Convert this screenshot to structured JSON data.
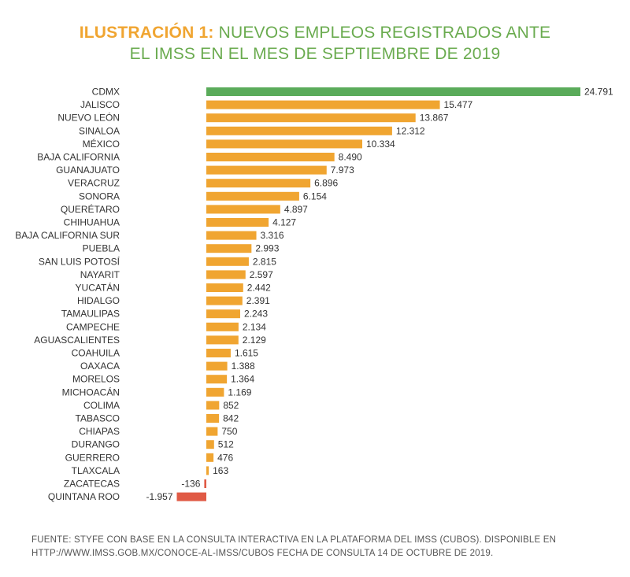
{
  "title": {
    "lead": "ILUSTRACIÓN 1:",
    "line1_rest": "NUEVOS EMPLEOS REGISTRADOS ANTE",
    "line2": "EL IMSS EN EL MES DE SEPTIEMBRE DE 2019"
  },
  "source": {
    "line1": "FUENTE: STYFE CON BASE EN LA CONSULTA INTERACTIVA EN LA PLATAFORMA DEL IMSS (CUBOS).  DISPONIBLE EN",
    "line2": "HTTP://WWW.IMSS.GOB.MX/CONOCE-AL-IMSS/CUBOS  FECHA DE CONSULTA 14 DE OCTUBRE DE 2019."
  },
  "colors": {
    "highlight": "#5aab5a",
    "positive": "#f0a531",
    "negative": "#e05a45",
    "title_green": "#6aab4f",
    "title_orange": "#f0a531"
  },
  "chart_data": {
    "type": "bar",
    "orientation": "horizontal",
    "categories": [
      "CDMX",
      "JALISCO",
      "NUEVO LEÓN",
      "SINALOA",
      "MÉXICO",
      "BAJA CALIFORNIA",
      "GUANAJUATO",
      "VERACRUZ",
      "SONORA",
      "QUERÉTARO",
      "CHIHUAHUA",
      "BAJA CALIFORNIA SUR",
      "PUEBLA",
      "SAN LUIS POTOSÍ",
      "NAYARIT",
      "YUCATÁN",
      "HIDALGO",
      "TAMAULIPAS",
      "CAMPECHE",
      "AGUASCALIENTES",
      "COAHUILA",
      "OAXACA",
      "MORELOS",
      "MICHOACÁN",
      "COLIMA",
      "TABASCO",
      "CHIAPAS",
      "DURANGO",
      "GUERRERO",
      "TLAXCALA",
      "ZACATECAS",
      "QUINTANA ROO"
    ],
    "values": [
      24791,
      15477,
      13867,
      12312,
      10334,
      8490,
      7973,
      6896,
      6154,
      4897,
      4127,
      3316,
      2993,
      2815,
      2597,
      2442,
      2391,
      2243,
      2134,
      2129,
      1615,
      1388,
      1364,
      1169,
      852,
      842,
      750,
      512,
      476,
      163,
      -136,
      -1957
    ],
    "value_labels": [
      "24.791",
      "15.477",
      "13.867",
      "12.312",
      "10.334",
      "8.490",
      "7.973",
      "6.896",
      "6.154",
      "4.897",
      "4.127",
      "3.316",
      "2.993",
      "2.815",
      "2.597",
      "2.442",
      "2.391",
      "2.243",
      "2.134",
      "2.129",
      "1.615",
      "1.388",
      "1.364",
      "1.169",
      "852",
      "842",
      "750",
      "512",
      "476",
      "163",
      "-136",
      "-1.957"
    ],
    "xlabel": "",
    "ylabel": "",
    "xlim": [
      -1957,
      24791
    ],
    "grid": false,
    "legend": "none"
  }
}
